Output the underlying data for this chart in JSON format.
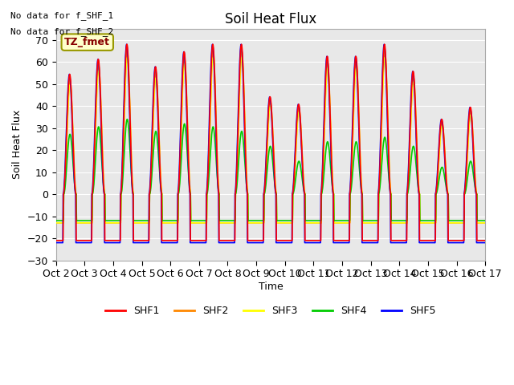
{
  "title": "Soil Heat Flux",
  "ylabel": "Soil Heat Flux",
  "xlabel": "Time",
  "ylim": [
    -30,
    75
  ],
  "yticks": [
    -30,
    -20,
    -10,
    0,
    10,
    20,
    30,
    40,
    50,
    60,
    70
  ],
  "bg_color": "#e8e8e8",
  "fig_color": "#ffffff",
  "colors": {
    "SHF1": "#ff0000",
    "SHF2": "#ff8800",
    "SHF3": "#ffff00",
    "SHF4": "#00cc00",
    "SHF5": "#0000ff"
  },
  "tz_label": "TZ_fmet",
  "note1": "No data for f_SHF_1",
  "note2": "No data for f_SHF_2",
  "x_tick_labels": [
    "Oct 2",
    "Oct 3",
    "Oct 4",
    "Oct 5",
    "Oct 6",
    "Oct 7",
    "Oct 8",
    "Oct 9",
    "Oct 10",
    "Oct 11",
    "Oct 12",
    "Oct 13",
    "Oct 14",
    "Oct 15",
    "Oct 16",
    "Oct 17"
  ],
  "n_days": 15,
  "day_scales_shf1": [
    0.8,
    0.9,
    1.0,
    0.85,
    0.95,
    1.0,
    1.0,
    0.65,
    0.6,
    0.92,
    0.92,
    1.0,
    0.82,
    0.5,
    0.58
  ],
  "day_scales_shf4": [
    0.4,
    0.45,
    0.5,
    0.42,
    0.47,
    0.45,
    0.42,
    0.32,
    0.22,
    0.35,
    0.35,
    0.38,
    0.32,
    0.18,
    0.22
  ]
}
